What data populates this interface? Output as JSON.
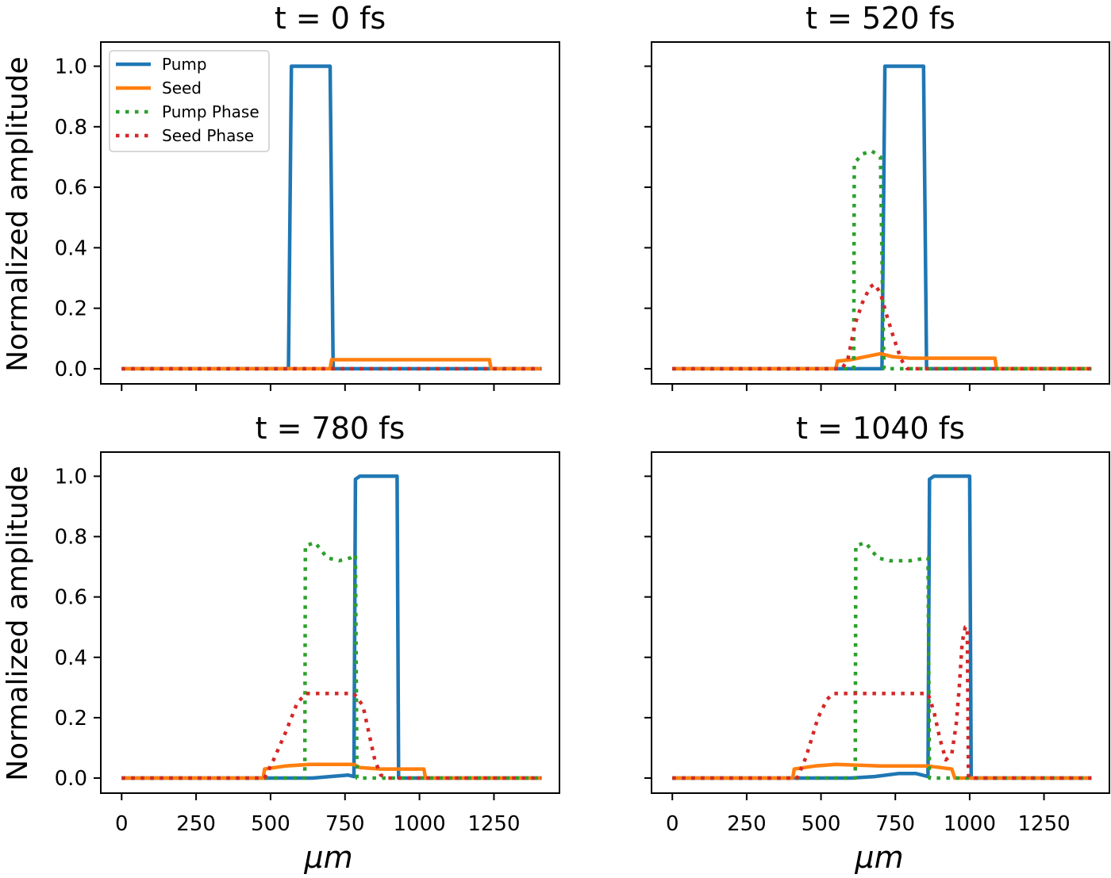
{
  "figure": {
    "ylabel": "Normalized amplitude",
    "xlabel": "μm"
  },
  "legend": {
    "items": [
      {
        "label": "Pump",
        "color": "#1f77b4",
        "style": "solid"
      },
      {
        "label": "Seed",
        "color": "#ff7f0e",
        "style": "solid"
      },
      {
        "label": "Pump Phase",
        "color": "#2ca02c",
        "style": "dotted"
      },
      {
        "label": "Seed Phase",
        "color": "#d62728",
        "style": "dotted"
      }
    ],
    "placement": "upper-left of first panel"
  },
  "chart_data": [
    {
      "type": "line",
      "title": "t = 0 fs",
      "xlabel": "",
      "ylabel": "Normalized amplitude",
      "xlim": [
        -70,
        1470
      ],
      "ylim": [
        -0.05,
        1.08
      ],
      "xticks": [
        0,
        250,
        500,
        750,
        1000,
        1250
      ],
      "yticks": [
        "0.0",
        "0.2",
        "0.4",
        "0.6",
        "0.8",
        "1.0"
      ],
      "show_xticklabels": false,
      "show_yticklabels": true,
      "legend": true,
      "series": [
        {
          "name": "Pump",
          "color": "#1f77b4",
          "dash": "solid",
          "points": [
            [
              0,
              0
            ],
            [
              560,
              0
            ],
            [
              570,
              1.0
            ],
            [
              700,
              1.0
            ],
            [
              710,
              0
            ],
            [
              1410,
              0
            ]
          ]
        },
        {
          "name": "Seed",
          "color": "#ff7f0e",
          "dash": "solid",
          "points": [
            [
              0,
              0
            ],
            [
              700,
              0
            ],
            [
              705,
              0.03
            ],
            [
              1235,
              0.03
            ],
            [
              1240,
              0
            ],
            [
              1410,
              0
            ]
          ]
        },
        {
          "name": "Pump Phase",
          "color": "#2ca02c",
          "dash": "dotted",
          "points": [
            [
              0,
              0
            ],
            [
              1410,
              0
            ]
          ]
        },
        {
          "name": "Seed Phase",
          "color": "#d62728",
          "dash": "dotted",
          "points": [
            [
              0,
              0
            ],
            [
              1410,
              0
            ]
          ]
        }
      ]
    },
    {
      "type": "line",
      "title": "t = 520 fs",
      "xlabel": "",
      "ylabel": "",
      "xlim": [
        -70,
        1470
      ],
      "ylim": [
        -0.05,
        1.08
      ],
      "xticks": [
        0,
        250,
        500,
        750,
        1000,
        1250
      ],
      "yticks": [
        "0.0",
        "0.2",
        "0.4",
        "0.6",
        "0.8",
        "1.0"
      ],
      "show_xticklabels": false,
      "show_yticklabels": false,
      "legend": false,
      "series": [
        {
          "name": "Pump",
          "color": "#1f77b4",
          "dash": "solid",
          "points": [
            [
              0,
              0
            ],
            [
              705,
              0
            ],
            [
              715,
              1.0
            ],
            [
              845,
              1.0
            ],
            [
              855,
              0
            ],
            [
              1410,
              0
            ]
          ]
        },
        {
          "name": "Seed",
          "color": "#ff7f0e",
          "dash": "solid",
          "points": [
            [
              0,
              0
            ],
            [
              550,
              0
            ],
            [
              555,
              0.025
            ],
            [
              600,
              0.03
            ],
            [
              650,
              0.04
            ],
            [
              700,
              0.05
            ],
            [
              740,
              0.04
            ],
            [
              800,
              0.035
            ],
            [
              1085,
              0.035
            ],
            [
              1090,
              0
            ],
            [
              1410,
              0
            ]
          ]
        },
        {
          "name": "Pump Phase",
          "color": "#2ca02c",
          "dash": "dotted",
          "points": [
            [
              0,
              0
            ],
            [
              610,
              0
            ],
            [
              612,
              0.68
            ],
            [
              640,
              0.71
            ],
            [
              670,
              0.72
            ],
            [
              700,
              0.7
            ],
            [
              707,
              0.25
            ],
            [
              712,
              0
            ],
            [
              1410,
              0
            ]
          ]
        },
        {
          "name": "Seed Phase",
          "color": "#d62728",
          "dash": "dotted",
          "points": [
            [
              0,
              0
            ],
            [
              570,
              0
            ],
            [
              590,
              0.03
            ],
            [
              615,
              0.15
            ],
            [
              640,
              0.22
            ],
            [
              665,
              0.27
            ],
            [
              680,
              0.28
            ],
            [
              700,
              0.25
            ],
            [
              720,
              0.18
            ],
            [
              745,
              0.1
            ],
            [
              770,
              0.03
            ],
            [
              790,
              0
            ],
            [
              1410,
              0
            ]
          ]
        }
      ]
    },
    {
      "type": "line",
      "title": "t = 780 fs",
      "xlabel": "μm",
      "ylabel": "Normalized amplitude",
      "xlim": [
        -70,
        1470
      ],
      "ylim": [
        -0.05,
        1.08
      ],
      "xticks": [
        0,
        250,
        500,
        750,
        1000,
        1250
      ],
      "yticks": [
        "0.0",
        "0.2",
        "0.4",
        "0.6",
        "0.8",
        "1.0"
      ],
      "show_xticklabels": true,
      "show_yticklabels": true,
      "legend": false,
      "series": [
        {
          "name": "Pump",
          "color": "#1f77b4",
          "dash": "solid",
          "points": [
            [
              0,
              0
            ],
            [
              640,
              0
            ],
            [
              700,
              0.005
            ],
            [
              760,
              0.01
            ],
            [
              780,
              0.005
            ],
            [
              785,
              0.99
            ],
            [
              800,
              1.0
            ],
            [
              925,
              1.0
            ],
            [
              930,
              0
            ],
            [
              1410,
              0
            ]
          ]
        },
        {
          "name": "Seed",
          "color": "#ff7f0e",
          "dash": "solid",
          "points": [
            [
              0,
              0
            ],
            [
              475,
              0
            ],
            [
              480,
              0.03
            ],
            [
              550,
              0.04
            ],
            [
              630,
              0.045
            ],
            [
              780,
              0.045
            ],
            [
              800,
              0.035
            ],
            [
              870,
              0.03
            ],
            [
              1015,
              0.03
            ],
            [
              1020,
              0
            ],
            [
              1410,
              0
            ]
          ]
        },
        {
          "name": "Pump Phase",
          "color": "#2ca02c",
          "dash": "dotted",
          "points": [
            [
              0,
              0
            ],
            [
              615,
              0
            ],
            [
              617,
              0.77
            ],
            [
              650,
              0.78
            ],
            [
              690,
              0.73
            ],
            [
              730,
              0.72
            ],
            [
              770,
              0.73
            ],
            [
              785,
              0.74
            ],
            [
              790,
              0
            ],
            [
              1410,
              0
            ]
          ]
        },
        {
          "name": "Seed Phase",
          "color": "#d62728",
          "dash": "dotted",
          "points": [
            [
              0,
              0
            ],
            [
              480,
              0
            ],
            [
              510,
              0.06
            ],
            [
              550,
              0.15
            ],
            [
              590,
              0.25
            ],
            [
              620,
              0.28
            ],
            [
              780,
              0.28
            ],
            [
              810,
              0.24
            ],
            [
              830,
              0.15
            ],
            [
              850,
              0.06
            ],
            [
              870,
              0.01
            ],
            [
              890,
              0
            ],
            [
              1410,
              0
            ]
          ]
        }
      ]
    },
    {
      "type": "line",
      "title": "t = 1040 fs",
      "xlabel": "μm",
      "ylabel": "",
      "xlim": [
        -70,
        1470
      ],
      "ylim": [
        -0.05,
        1.08
      ],
      "xticks": [
        0,
        250,
        500,
        750,
        1000,
        1250
      ],
      "yticks": [
        "0.0",
        "0.2",
        "0.4",
        "0.6",
        "0.8",
        "1.0"
      ],
      "show_xticklabels": true,
      "show_yticklabels": false,
      "legend": false,
      "series": [
        {
          "name": "Pump",
          "color": "#1f77b4",
          "dash": "solid",
          "points": [
            [
              0,
              0
            ],
            [
              600,
              0
            ],
            [
              680,
              0.005
            ],
            [
              760,
              0.015
            ],
            [
              820,
              0.015
            ],
            [
              860,
              0.005
            ],
            [
              865,
              0.99
            ],
            [
              880,
              1.0
            ],
            [
              1000,
              1.0
            ],
            [
              1005,
              0
            ],
            [
              1410,
              0
            ]
          ]
        },
        {
          "name": "Seed",
          "color": "#ff7f0e",
          "dash": "solid",
          "points": [
            [
              0,
              0
            ],
            [
              405,
              0
            ],
            [
              410,
              0.03
            ],
            [
              480,
              0.04
            ],
            [
              550,
              0.045
            ],
            [
              700,
              0.04
            ],
            [
              800,
              0.04
            ],
            [
              860,
              0.04
            ],
            [
              900,
              0.035
            ],
            [
              940,
              0.03
            ],
            [
              950,
              0
            ],
            [
              1410,
              0
            ]
          ]
        },
        {
          "name": "Pump Phase",
          "color": "#2ca02c",
          "dash": "dotted",
          "points": [
            [
              0,
              0
            ],
            [
              615,
              0
            ],
            [
              617,
              0.77
            ],
            [
              650,
              0.78
            ],
            [
              690,
              0.73
            ],
            [
              730,
              0.72
            ],
            [
              800,
              0.72
            ],
            [
              860,
              0.73
            ],
            [
              865,
              0
            ],
            [
              1410,
              0
            ]
          ]
        },
        {
          "name": "Seed Phase",
          "color": "#d62728",
          "dash": "dotted",
          "points": [
            [
              0,
              0
            ],
            [
              420,
              0
            ],
            [
              450,
              0.07
            ],
            [
              490,
              0.2
            ],
            [
              520,
              0.26
            ],
            [
              540,
              0.28
            ],
            [
              860,
              0.28
            ],
            [
              880,
              0.22
            ],
            [
              900,
              0.13
            ],
            [
              920,
              0.06
            ],
            [
              940,
              0.08
            ],
            [
              955,
              0.18
            ],
            [
              965,
              0.3
            ],
            [
              975,
              0.45
            ],
            [
              985,
              0.5
            ],
            [
              992,
              0.5
            ],
            [
              996,
              0
            ],
            [
              1410,
              0
            ]
          ]
        }
      ]
    }
  ]
}
